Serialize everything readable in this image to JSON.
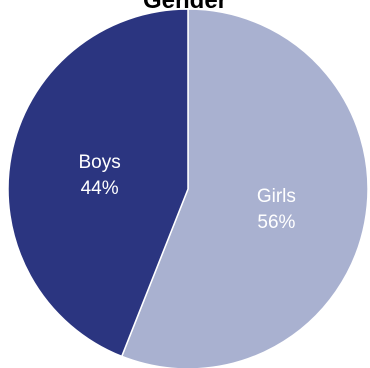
{
  "chart_data": {
    "type": "pie",
    "title": "Gender",
    "slices": [
      {
        "label": "Girls",
        "value": 56,
        "value_label": "56%",
        "color": "#a9b1d0"
      },
      {
        "label": "Boys",
        "value": 44,
        "value_label": "44%",
        "color": "#2b3580"
      }
    ],
    "start_angle_deg": 0,
    "direction": "clockwise",
    "slice_border_color": "#ffffff",
    "legend": "none"
  }
}
